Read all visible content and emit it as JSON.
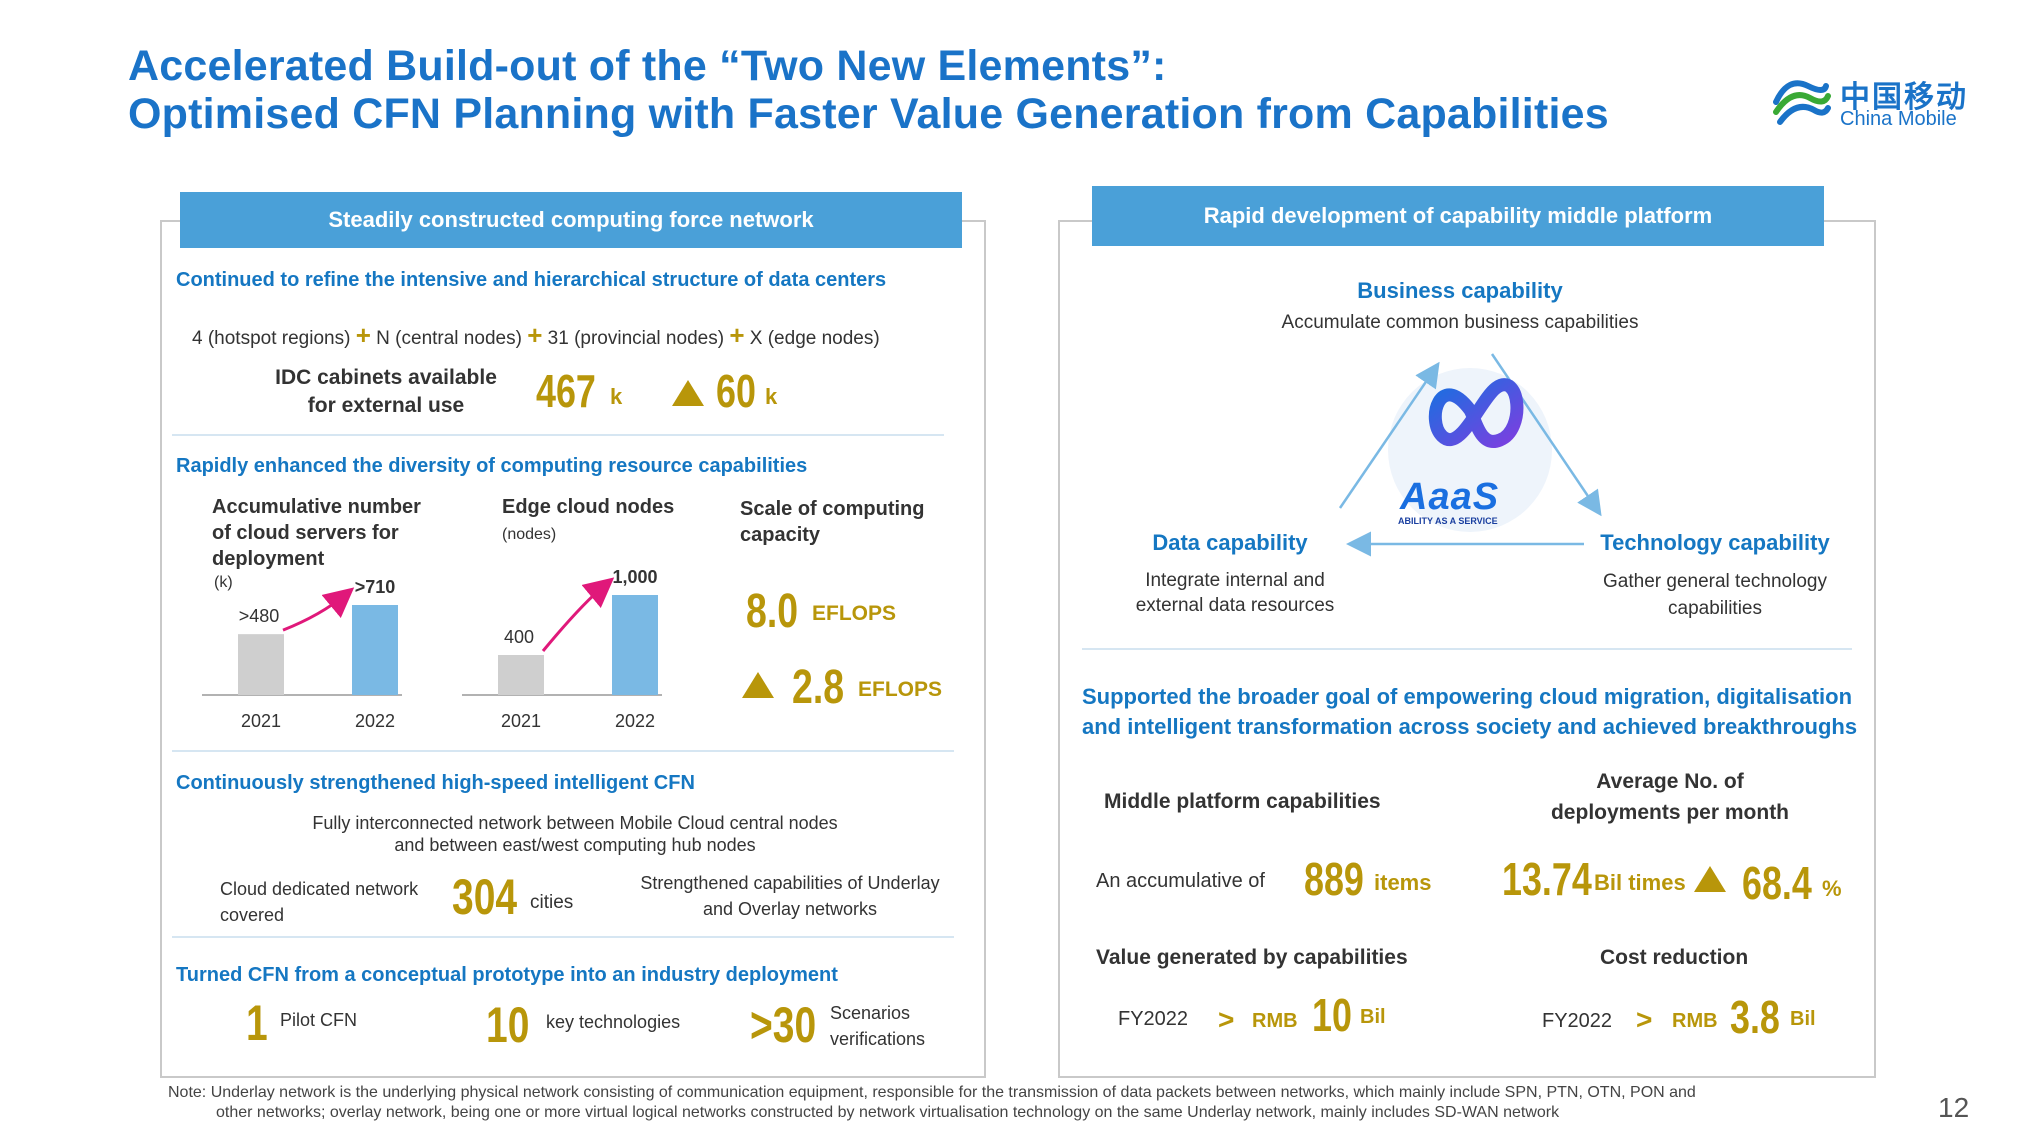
{
  "title": {
    "line1": "Accelerated Build-out of the “Two New Elements”:",
    "line2": "Optimised CFN Planning with Faster Value Generation from Capabilities"
  },
  "logo": {
    "cn": "中国移动",
    "en": "China Mobile",
    "icon": "china-mobile-logo-icon"
  },
  "left": {
    "header": "Steadily constructed computing force network",
    "sec1": {
      "title": "Continued to refine the intensive and hierarchical structure of data centers",
      "hier": [
        "4 (hotspot regions)",
        "N (central nodes)",
        "31 (provincial nodes)",
        "X (edge nodes)"
      ],
      "plus": "+",
      "idc_label1": "IDC cabinets available",
      "idc_label2": "for external use",
      "idc_value": "467",
      "idc_unit": "k",
      "idc_inc": "60",
      "idc_inc_unit": "k"
    },
    "sec2": {
      "title": "Rapidly enhanced the diversity of computing resource capabilities",
      "servers_label1": "Accumulative number",
      "servers_label2": "of cloud servers for",
      "servers_label3": "deployment",
      "servers_unit": "(k)",
      "edge_label": "Edge cloud nodes",
      "edge_unit": "(nodes)",
      "scale_label1": "Scale of computing",
      "scale_label2": "capacity",
      "scale_value": "8.0",
      "scale_unit": "EFLOPS",
      "scale_inc": "2.8",
      "scale_inc_unit": "EFLOPS"
    },
    "sec3": {
      "title": "Continuously strengthened high-speed intelligent CFN",
      "line1": "Fully interconnected network between Mobile Cloud central nodes",
      "line2": "and between east/west computing hub nodes",
      "cov1": "Cloud dedicated network",
      "cov2": "covered",
      "cov_value": "304",
      "cov_unit": "cities",
      "under1": "Strengthened capabilities of Underlay",
      "under2": "and Overlay networks"
    },
    "sec4": {
      "title": "Turned CFN from a conceptual prototype into an industry deployment",
      "v1": "1",
      "l1": "Pilot CFN",
      "v2": "10",
      "l2": "key technologies",
      "v3": ">30",
      "l3a": "Scenarios",
      "l3b": "verifications"
    }
  },
  "right": {
    "header": "Rapid development of capability middle platform",
    "business_title": "Business capability",
    "business_desc": "Accumulate common business capabilities",
    "data_title": "Data capability",
    "data_desc1": "Integrate internal and",
    "data_desc2": "external data resources",
    "tech_title": "Technology capability",
    "tech_desc1": "Gather general technology",
    "tech_desc2": "capabilities",
    "aaas_logo": "AaaS",
    "aaas_tag": "ABILITY AS A SERVICE",
    "goal1": "Supported the broader goal of empowering cloud migration, digitalisation",
    "goal2": "and intelligent transformation across society and achieved breakthroughs",
    "mp_label": "Middle platform capabilities",
    "mp_prefix": "An accumulative of",
    "mp_value": "889",
    "mp_unit": "items",
    "dep_label1": "Average No. of",
    "dep_label2": "deployments per month",
    "dep_value": "13.74",
    "dep_unit": "Bil times",
    "dep_inc": "68.4",
    "dep_inc_unit": "%",
    "val_label": "Value generated by capabilities",
    "val_fy": "FY2022",
    "val_gt": ">",
    "val_rmb": "RMB",
    "val_value": "10",
    "val_unit": "Bil",
    "cost_label": "Cost reduction",
    "cost_fy": "FY2022",
    "cost_gt": ">",
    "cost_rmb": "RMB",
    "cost_value": "3.8",
    "cost_unit": "Bil"
  },
  "footnote": {
    "line1": "Note: Underlay network is the underlying physical network consisting of communication equipment, responsible for the transmission of data packets between networks, which mainly include SPN, PTN, OTN, PON and",
    "line2": "other networks; overlay network, being one or more virtual logical networks constructed by network virtualisation technology on the same Underlay network, mainly includes SD-WAN network"
  },
  "page_number": "12",
  "colors": {
    "accent": "#1a73c8",
    "header_bg": "#4aa0d8",
    "gold": "#b8960a",
    "bar_gray": "#cfcfcf",
    "bar_blue": "#7ab9e4",
    "arrow_pink": "#e0187a"
  },
  "chart_data": [
    {
      "type": "bar",
      "categories": [
        "2021",
        "2022"
      ],
      "values": [
        480,
        710
      ],
      "data_labels": [
        ">480",
        ">710"
      ],
      "title": "Accumulative number of cloud servers for deployment",
      "ylabel": "(k)"
    },
    {
      "type": "bar",
      "categories": [
        "2021",
        "2022"
      ],
      "values": [
        400,
        1000
      ],
      "data_labels": [
        "400",
        "1,000"
      ],
      "title": "Edge cloud nodes",
      "ylabel": "(nodes)"
    }
  ]
}
